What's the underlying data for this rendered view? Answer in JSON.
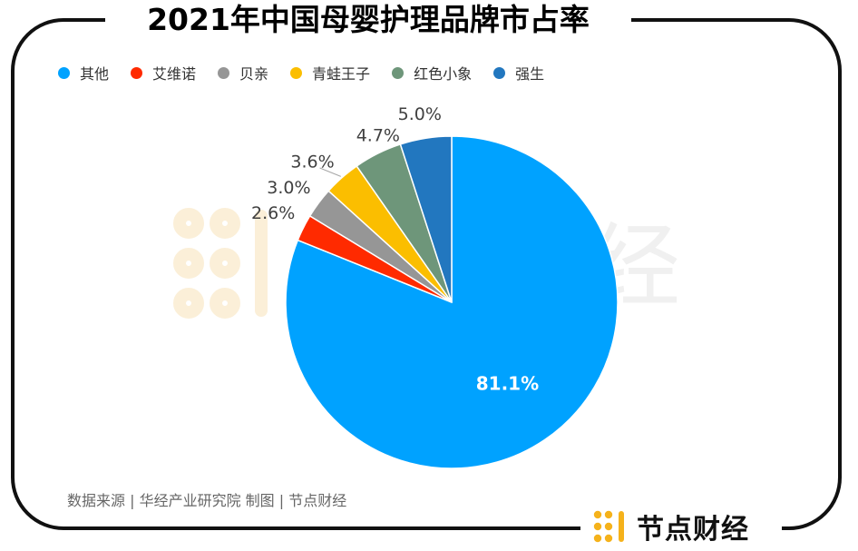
{
  "title": "2021年中国母婴护理品牌市占率",
  "source": "数据来源 | 华经产业研究院  制图 | 节点财经",
  "brand": {
    "name": "节点财经"
  },
  "watermark": {
    "text": "经"
  },
  "colors": {
    "brand_icon": "#F5B21B",
    "frame": "#111111"
  },
  "chart_data": {
    "type": "pie",
    "title": "2021年中国母婴护理品牌市占率",
    "legend_position": "top-left",
    "slices": [
      {
        "name": "其他",
        "value": 81.1,
        "label": "81.1%",
        "color": "#00A2FF"
      },
      {
        "name": "艾维诺",
        "value": 2.6,
        "label": "2.6%",
        "color": "#FF2A00"
      },
      {
        "name": "贝亲",
        "value": 3.0,
        "label": "3.0%",
        "color": "#969696"
      },
      {
        "name": "青蛙王子",
        "value": 3.6,
        "label": "3.6%",
        "color": "#FBBE00"
      },
      {
        "name": "红色小象",
        "value": 4.7,
        "label": "4.7%",
        "color": "#6E967A"
      },
      {
        "name": "强生",
        "value": 5.0,
        "label": "5.0%",
        "color": "#2277BF"
      }
    ]
  }
}
